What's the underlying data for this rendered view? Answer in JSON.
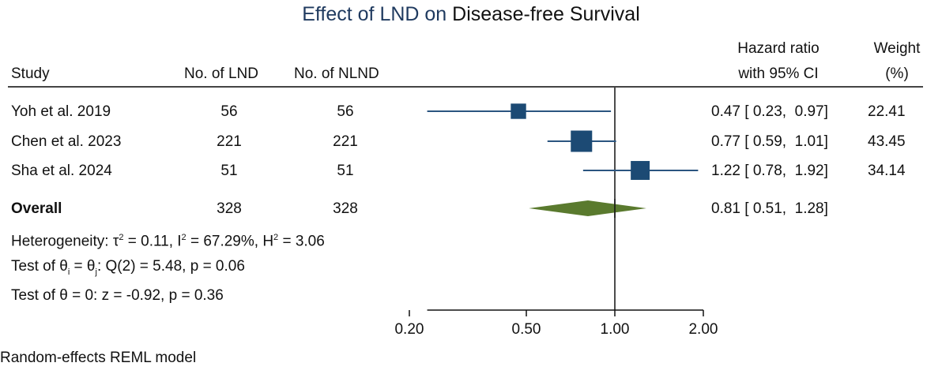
{
  "chart_data": {
    "type": "forest",
    "title_parts": [
      "Effect of LND on",
      "Disease-free Survival"
    ],
    "title": "Effect of LND on Disease-free Survival",
    "colors": {
      "title_accent": "#1f3a5f",
      "study_marker": "#1c4a74",
      "ci_line": "#2b5580",
      "overall_diamond": "#5a7a2e",
      "null_line": "#111111",
      "axis": "#111111"
    },
    "columns": {
      "study": "Study",
      "lnd": "No. of LND",
      "nlnd": "No. of NLND",
      "hr_line1": "Hazard ratio",
      "hr_line2": "with 95% CI",
      "weight_line1": "Weight",
      "weight_line2": "(%)"
    },
    "studies": [
      {
        "name": "Yoh et al. 2019",
        "lnd": "56",
        "nlnd": "56",
        "hr": 0.47,
        "lo": 0.23,
        "hi": 0.97,
        "hr_text": "0.47 [ 0.23,  0.97]",
        "weight": "22.41"
      },
      {
        "name": "Chen et al. 2023",
        "lnd": "221",
        "nlnd": "221",
        "hr": 0.77,
        "lo": 0.59,
        "hi": 1.01,
        "hr_text": "0.77 [ 0.59,  1.01]",
        "weight": "43.45"
      },
      {
        "name": "Sha et al. 2024",
        "lnd": "51",
        "nlnd": "51",
        "hr": 1.22,
        "lo": 0.78,
        "hi": 1.92,
        "hr_text": "1.22 [ 0.78,  1.92]",
        "weight": "34.14"
      }
    ],
    "overall": {
      "name": "Overall",
      "lnd": "328",
      "nlnd": "328",
      "hr": 0.81,
      "lo": 0.51,
      "hi": 1.28,
      "hr_text": "0.81 [ 0.51,  1.28]"
    },
    "heterogeneity": {
      "prefix": "Heterogeneity: τ",
      "tau2_text": " = 0.11, I",
      "i2_text": " = 67.29%, H",
      "h2_text": " = 3.06",
      "tau2": 0.11,
      "I2_percent": 67.29,
      "H2": 3.06
    },
    "test_equal": {
      "prefix": "Test of θ",
      "sub_i": "i",
      "mid": " = θ",
      "sub_j": "j",
      "suffix": ": Q(2) = 5.48, p = 0.06",
      "Q": 5.48,
      "df": 2,
      "p": 0.06
    },
    "test_zero": {
      "text": "Test of θ = 0: z = -0.92, p = 0.36",
      "z": -0.92,
      "p": 0.36
    },
    "x_axis": {
      "scale": "log",
      "ticks": [
        0.2,
        0.5,
        1.0,
        2.0
      ],
      "tick_labels": [
        "0.20",
        "0.50",
        "1.00",
        "2.00"
      ],
      "null_value": 1.0,
      "xlim": [
        0.2,
        2.0
      ]
    },
    "footnote": "Random-effects REML model"
  }
}
